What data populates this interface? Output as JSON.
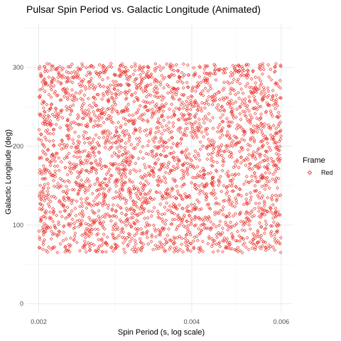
{
  "chart_data": {
    "type": "scatter",
    "title": "Pulsar Spin Period vs. Galactic Longitude (Animated)",
    "xlabel": "Spin Period (s, log scale)",
    "ylabel": "Galactic Longitude (deg)",
    "x_scale": "log",
    "xlim": [
      0.00189,
      0.00632
    ],
    "ylim": [
      -12,
      356
    ],
    "x_ticks": [
      0.002,
      0.004,
      0.006
    ],
    "x_tick_labels": [
      "0.002",
      "0.004",
      "0.006"
    ],
    "y_ticks": [
      0,
      100,
      200,
      300
    ],
    "y_tick_labels": [
      "0",
      "100",
      "200",
      "300"
    ],
    "grid": true,
    "legend": {
      "title": "Frame",
      "position": "right",
      "entries": [
        "Red"
      ]
    },
    "series": [
      {
        "name": "Red",
        "color": "#e8312a",
        "marker": "open-diamond",
        "approx_point_count": 3000,
        "x_range": [
          0.002,
          0.006
        ],
        "y_range": [
          65,
          305
        ],
        "points": [
          [
            0.00201,
            71
          ],
          [
            0.00208,
            143
          ],
          [
            0.00215,
            238
          ],
          [
            0.00222,
            297
          ],
          [
            0.0023,
            112
          ],
          [
            0.00238,
            186
          ],
          [
            0.00246,
            265
          ],
          [
            0.00254,
            89
          ],
          [
            0.00263,
            211
          ],
          [
            0.00272,
            150
          ],
          [
            0.00281,
            278
          ],
          [
            0.00291,
            104
          ],
          [
            0.00301,
            232
          ],
          [
            0.00311,
            168
          ],
          [
            0.00322,
            301
          ],
          [
            0.00333,
            79
          ],
          [
            0.00344,
            198
          ],
          [
            0.00356,
            254
          ],
          [
            0.00368,
            127
          ],
          [
            0.0038,
            283
          ],
          [
            0.00393,
            95
          ],
          [
            0.00406,
            220
          ],
          [
            0.0042,
            160
          ],
          [
            0.00434,
            290
          ],
          [
            0.00449,
            116
          ],
          [
            0.00464,
            245
          ],
          [
            0.0048,
            70
          ],
          [
            0.00496,
            205
          ],
          [
            0.00513,
            139
          ],
          [
            0.0053,
            272
          ],
          [
            0.00548,
            98
          ],
          [
            0.00566,
            227
          ],
          [
            0.00585,
            176
          ],
          [
            0.00598,
            303
          ],
          [
            0.00599,
            84
          ]
        ]
      }
    ]
  }
}
